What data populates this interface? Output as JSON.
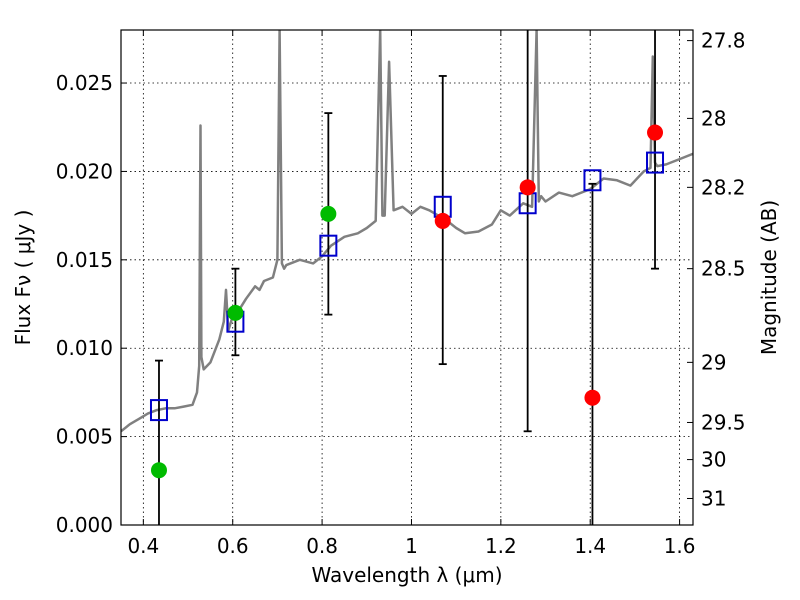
{
  "chart_data": {
    "type": "scatter",
    "xlabel": "Wavelength  λ (μm)",
    "ylabel": "Flux  Fν  ( μJy )",
    "ylabel_right": "Magnitude (AB)",
    "xlim": [
      0.35,
      1.63
    ],
    "ylim": [
      0.0,
      0.028
    ],
    "grid": true,
    "x_ticks": [
      {
        "value": 0.4,
        "label": "0.4"
      },
      {
        "value": 0.6,
        "label": "0.6"
      },
      {
        "value": 0.8,
        "label": "0.8"
      },
      {
        "value": 1.0,
        "label": "1"
      },
      {
        "value": 1.2,
        "label": "1.2"
      },
      {
        "value": 1.4,
        "label": "1.4"
      },
      {
        "value": 1.6,
        "label": "1.6"
      }
    ],
    "y_ticks": [
      {
        "value": 0.0,
        "label": "0.000"
      },
      {
        "value": 0.005,
        "label": "0.005"
      },
      {
        "value": 0.01,
        "label": "0.010"
      },
      {
        "value": 0.015,
        "label": "0.015"
      },
      {
        "value": 0.02,
        "label": "0.020"
      },
      {
        "value": 0.025,
        "label": "0.025"
      }
    ],
    "right_ticks": [
      {
        "flux": 0.0274,
        "label": "27.8"
      },
      {
        "flux": 0.023,
        "label": "28"
      },
      {
        "flux": 0.0191,
        "label": "28.2"
      },
      {
        "flux": 0.0145,
        "label": "28.5"
      },
      {
        "flux": 0.0092,
        "label": "29"
      },
      {
        "flux": 0.0058,
        "label": "29.5"
      },
      {
        "flux": 0.0037,
        "label": "30"
      },
      {
        "flux": 0.0015,
        "label": "31"
      }
    ],
    "series": [
      {
        "kind": "spectrum",
        "color": "#808080",
        "x": [
          0.35,
          0.37,
          0.39,
          0.41,
          0.43,
          0.45,
          0.47,
          0.49,
          0.51,
          0.52,
          0.525,
          0.528,
          0.53,
          0.535,
          0.55,
          0.57,
          0.58,
          0.585,
          0.59,
          0.6,
          0.61,
          0.63,
          0.65,
          0.66,
          0.67,
          0.69,
          0.7,
          0.705,
          0.71,
          0.715,
          0.72,
          0.75,
          0.78,
          0.8,
          0.82,
          0.85,
          0.88,
          0.9,
          0.92,
          0.93,
          0.935,
          0.94,
          0.95,
          0.96,
          0.98,
          1.0,
          1.02,
          1.04,
          1.06,
          1.08,
          1.1,
          1.12,
          1.15,
          1.18,
          1.2,
          1.22,
          1.25,
          1.27,
          1.28,
          1.285,
          1.29,
          1.3,
          1.33,
          1.36,
          1.4,
          1.43,
          1.46,
          1.49,
          1.52,
          1.535,
          1.54,
          1.545,
          1.55,
          1.57,
          1.6,
          1.63
        ],
        "y": [
          0.0053,
          0.0057,
          0.006,
          0.0063,
          0.0065,
          0.0066,
          0.0066,
          0.0067,
          0.0068,
          0.0075,
          0.009,
          0.0226,
          0.0095,
          0.0088,
          0.0092,
          0.0105,
          0.0115,
          0.0133,
          0.011,
          0.0118,
          0.012,
          0.0128,
          0.0135,
          0.0133,
          0.0138,
          0.014,
          0.015,
          0.028,
          0.0148,
          0.0145,
          0.0147,
          0.015,
          0.0148,
          0.0152,
          0.0158,
          0.0163,
          0.0165,
          0.0168,
          0.0172,
          0.028,
          0.0175,
          0.0175,
          0.0262,
          0.0178,
          0.018,
          0.0176,
          0.018,
          0.0178,
          0.0175,
          0.0172,
          0.0168,
          0.0165,
          0.0166,
          0.017,
          0.0178,
          0.0175,
          0.0182,
          0.018,
          0.028,
          0.0183,
          0.0186,
          0.0183,
          0.0188,
          0.0186,
          0.019,
          0.0196,
          0.0195,
          0.0192,
          0.02,
          0.0202,
          0.0265,
          0.0205,
          0.0203,
          0.0204,
          0.0207,
          0.021
        ]
      },
      {
        "kind": "model_boxes",
        "marker": "open-square",
        "color": "#0000cc",
        "x": [
          0.435,
          0.606,
          0.814,
          1.07,
          1.26,
          1.405,
          1.545
        ],
        "y": [
          0.0065,
          0.0115,
          0.0158,
          0.018,
          0.0182,
          0.0195,
          0.0205
        ]
      },
      {
        "kind": "detections",
        "marker": "filled-circle",
        "color": "#00bb00",
        "x": [
          0.435,
          0.606,
          0.814
        ],
        "y": [
          0.0031,
          0.012,
          0.0176
        ]
      },
      {
        "kind": "measurements",
        "marker": "filled-circle",
        "color": "#ff0000",
        "x": [
          1.07,
          1.26,
          1.405,
          1.545
        ],
        "y": [
          0.0172,
          0.0191,
          0.0072,
          0.0222
        ]
      },
      {
        "kind": "errorbars",
        "color": "#000000",
        "x": [
          0.435,
          0.606,
          0.814,
          1.07,
          1.26,
          1.405,
          1.545
        ],
        "lower": [
          0.0,
          0.0096,
          0.0119,
          0.0091,
          0.0053,
          0.0,
          0.0145
        ],
        "upper": [
          0.0093,
          0.0145,
          0.0233,
          0.0254,
          0.028,
          0.0193,
          0.028
        ]
      }
    ]
  }
}
